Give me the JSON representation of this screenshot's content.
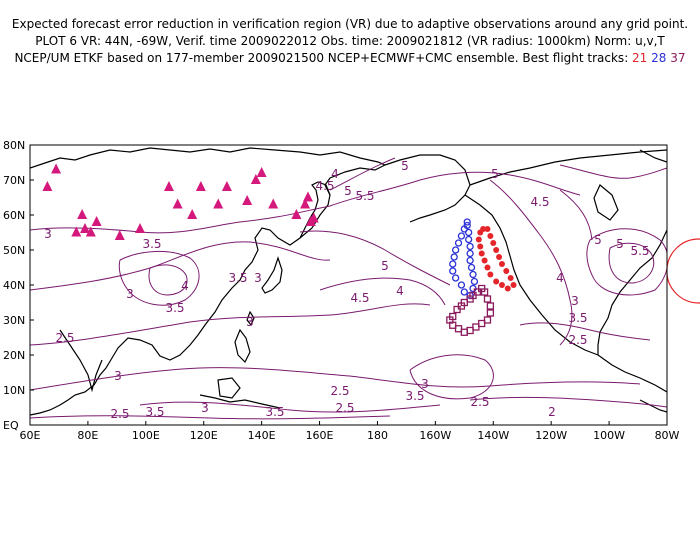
{
  "header": {
    "line1": "Expected forecast error reduction in verification region (VR) due to adaptive observations around any grid point.",
    "line2": "PLOT 6 VR: 44N, -69W, Verif. time 2009022012 Obs. time: 2009021812 (VR radius: 1000km) Norm: u,v,T",
    "line3_prefix": "NCEP/UM ETKF based on 177-member 2009021500 NCEP+ECMWF+CMC ensemble. Best flight tracks: ",
    "track_labels": [
      "21",
      "28",
      "37"
    ]
  },
  "colors": {
    "contour": "#7a1a6e",
    "coast": "#000000",
    "triangles": "#d4187c",
    "track21": "#e4262b",
    "track28": "#2b32d6",
    "track37": "#8b1a5c",
    "vr_circle": "#e4262b"
  },
  "axes": {
    "lat_labels": [
      "80N",
      "70N",
      "60N",
      "50N",
      "40N",
      "30N",
      "20N",
      "10N",
      "EQ"
    ],
    "lon_labels": [
      "60E",
      "80E",
      "100E",
      "120E",
      "140E",
      "160E",
      "180",
      "160W",
      "140W",
      "120W",
      "100W",
      "80W"
    ]
  },
  "contour_labels": [
    "4",
    "5",
    "4.5",
    "5",
    "5.5",
    "3",
    "3.5",
    "3",
    "3.5",
    "4",
    "3",
    "3.5",
    "3",
    "2.5",
    "4.5",
    "4",
    "5",
    "5",
    "3",
    "3.5",
    "3.5",
    "3",
    "2.5",
    "3",
    "2.5",
    "2.5",
    "3.5",
    "2.5",
    "3",
    "3.5",
    "2.5",
    "2",
    "4.5",
    "5",
    "4",
    "5",
    "5.5"
  ],
  "observing_sites": [
    [
      66,
      68
    ],
    [
      69,
      73
    ],
    [
      76,
      55
    ],
    [
      78,
      60
    ],
    [
      79,
      56
    ],
    [
      81,
      55
    ],
    [
      83,
      58
    ],
    [
      91,
      54
    ],
    [
      98,
      56
    ],
    [
      108,
      68
    ],
    [
      111,
      63
    ],
    [
      116,
      60
    ],
    [
      119,
      68
    ],
    [
      125,
      63
    ],
    [
      128,
      68
    ],
    [
      135,
      64
    ],
    [
      138,
      70
    ],
    [
      140,
      72
    ],
    [
      144,
      63
    ],
    [
      152,
      60
    ],
    [
      155,
      63
    ],
    [
      156,
      65
    ],
    [
      157,
      58
    ],
    [
      158,
      59
    ]
  ],
  "flight_tracks": {
    "track21": [
      [
        -143.5,
        56
      ],
      [
        -142,
        56
      ],
      [
        -141,
        54
      ],
      [
        -140,
        52
      ],
      [
        -139,
        50
      ],
      [
        -138,
        48
      ],
      [
        -137,
        46
      ],
      [
        -135.5,
        44
      ],
      [
        -134,
        42
      ],
      [
        -133,
        40
      ],
      [
        -135,
        39
      ],
      [
        -137,
        40
      ],
      [
        -139,
        41
      ],
      [
        -141,
        43
      ],
      [
        -142,
        45
      ],
      [
        -143,
        47
      ],
      [
        -144,
        49
      ],
      [
        -144.5,
        51
      ],
      [
        -145,
        53
      ],
      [
        -144.5,
        55
      ]
    ],
    "track28": [
      [
        -149,
        58
      ],
      [
        -150,
        56
      ],
      [
        -151,
        54
      ],
      [
        -152,
        52
      ],
      [
        -153,
        50
      ],
      [
        -153.5,
        48
      ],
      [
        -154,
        46
      ],
      [
        -154,
        44
      ],
      [
        -153,
        42
      ],
      [
        -151,
        40
      ],
      [
        -150,
        38
      ],
      [
        -148,
        37
      ],
      [
        -147,
        39
      ],
      [
        -146.5,
        41
      ],
      [
        -147,
        43
      ],
      [
        -147.5,
        45
      ],
      [
        -148,
        47
      ],
      [
        -148,
        49
      ],
      [
        -148,
        51
      ],
      [
        -148.5,
        53
      ],
      [
        -148.5,
        55
      ],
      [
        -149,
        57
      ]
    ],
    "track37": [
      [
        -144,
        39
      ],
      [
        -145.5,
        38
      ],
      [
        -147,
        37
      ],
      [
        -148,
        36
      ],
      [
        -150,
        35
      ],
      [
        -151,
        34
      ],
      [
        -152.5,
        33
      ],
      [
        -154,
        31
      ],
      [
        -155,
        30
      ],
      [
        -154,
        28.5
      ],
      [
        -152,
        27.5
      ],
      [
        -150,
        26.5
      ],
      [
        -148,
        27
      ],
      [
        -146,
        28
      ],
      [
        -144,
        29
      ],
      [
        -142,
        30
      ],
      [
        -141,
        32
      ],
      [
        -141,
        34
      ],
      [
        -142,
        36
      ],
      [
        -143,
        38
      ]
    ]
  },
  "verification_region": {
    "lat": 44,
    "lon": -69
  }
}
